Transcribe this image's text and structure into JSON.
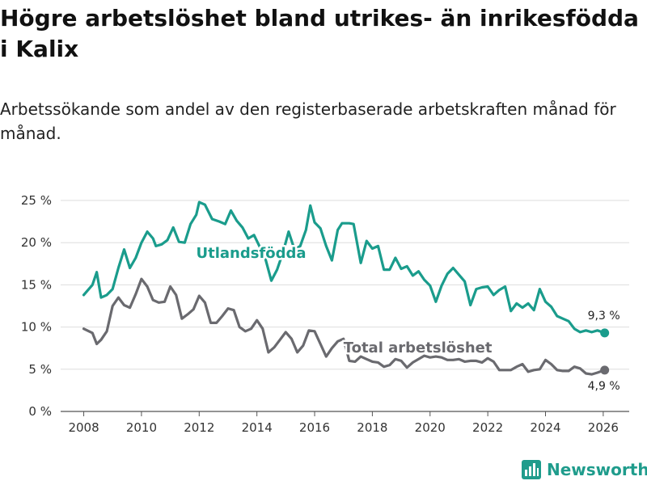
{
  "title": "Högre arbetslöshet bland utrikes- än inrikesfödda i Kalix",
  "subtitle": "Arbetssökande som andel av den registerbaserade arbetskraften månad för månad.",
  "brand": "Newsworthy",
  "colors": {
    "foreign": "#1a9c8c",
    "total": "#6a6a6f",
    "grid": "#dddddd",
    "brand": "#1f9c8c"
  },
  "chart_data": {
    "type": "line",
    "title": "Högre arbetslöshet bland utrikes- än inrikesfödda i Kalix",
    "xlabel": "",
    "ylabel": "",
    "xlim": [
      2007.2,
      2026.9
    ],
    "ylim": [
      0,
      25
    ],
    "yticks": [
      0,
      5,
      10,
      15,
      20,
      25
    ],
    "ytick_labels": [
      "0 %",
      "5 %",
      "10 %",
      "15 %",
      "20 %",
      "25 %"
    ],
    "xticks": [
      2008,
      2010,
      2012,
      2014,
      2016,
      2018,
      2020,
      2022,
      2024,
      2026
    ],
    "xtick_labels": [
      "2008",
      "2010",
      "2012",
      "2014",
      "2016",
      "2018",
      "2020",
      "2022",
      "2024",
      "2026"
    ],
    "grid": true,
    "series": [
      {
        "name": "Utlandsfödda",
        "label": "Utlandsfödda",
        "end_label": "9,3 %",
        "x": [
          2008.0,
          2008.3,
          2008.45,
          2008.6,
          2008.8,
          2009.0,
          2009.2,
          2009.4,
          2009.6,
          2009.8,
          2010.0,
          2010.2,
          2010.4,
          2010.5,
          2010.7,
          2010.9,
          2011.1,
          2011.3,
          2011.5,
          2011.7,
          2011.9,
          2012.0,
          2012.2,
          2012.45,
          2012.7,
          2012.9,
          2013.1,
          2013.3,
          2013.5,
          2013.7,
          2013.9,
          2014.1,
          2014.3,
          2014.5,
          2014.7,
          2014.9,
          2015.1,
          2015.3,
          2015.5,
          2015.7,
          2015.85,
          2016.0,
          2016.2,
          2016.4,
          2016.6,
          2016.8,
          2016.95,
          2017.2,
          2017.35,
          2017.6,
          2017.8,
          2018.0,
          2018.2,
          2018.4,
          2018.6,
          2018.8,
          2019.0,
          2019.2,
          2019.4,
          2019.6,
          2019.8,
          2020.0,
          2020.2,
          2020.4,
          2020.6,
          2020.8,
          2021.0,
          2021.2,
          2021.4,
          2021.6,
          2021.8,
          2022.0,
          2022.2,
          2022.4,
          2022.6,
          2022.8,
          2023.0,
          2023.2,
          2023.4,
          2023.6,
          2023.8,
          2024.0,
          2024.2,
          2024.4,
          2024.6,
          2024.8,
          2025.0,
          2025.2,
          2025.4,
          2025.6,
          2025.8,
          2026.05
        ],
        "values": [
          13.8,
          15.0,
          16.5,
          13.5,
          13.8,
          14.5,
          17.0,
          19.2,
          17.0,
          18.2,
          20.0,
          21.3,
          20.5,
          19.6,
          19.8,
          20.3,
          21.8,
          20.1,
          20.0,
          22.2,
          23.3,
          24.8,
          24.5,
          22.8,
          22.5,
          22.2,
          23.8,
          22.6,
          21.8,
          20.5,
          20.9,
          19.5,
          18.0,
          15.5,
          16.8,
          18.8,
          21.3,
          19.2,
          19.6,
          21.5,
          24.4,
          22.4,
          21.7,
          19.6,
          17.9,
          21.5,
          22.3,
          22.3,
          22.2,
          17.6,
          20.2,
          19.3,
          19.6,
          16.8,
          16.8,
          18.2,
          16.9,
          17.2,
          16.1,
          16.6,
          15.6,
          14.9,
          13.0,
          14.9,
          16.3,
          17.0,
          16.2,
          15.4,
          12.6,
          14.5,
          14.7,
          14.8,
          13.8,
          14.4,
          14.8,
          11.9,
          12.8,
          12.3,
          12.8,
          12.0,
          14.5,
          13.0,
          12.4,
          11.3,
          11.0,
          10.7,
          9.8,
          9.4,
          9.6,
          9.4,
          9.6,
          9.3
        ]
      },
      {
        "name": "Total arbetslöshet",
        "label": "Total arbetslöshet",
        "end_label": "4,9 %",
        "x": [
          2008.0,
          2008.3,
          2008.45,
          2008.6,
          2008.8,
          2009.0,
          2009.2,
          2009.4,
          2009.6,
          2009.8,
          2010.0,
          2010.2,
          2010.4,
          2010.6,
          2010.8,
          2011.0,
          2011.2,
          2011.4,
          2011.6,
          2011.8,
          2012.0,
          2012.2,
          2012.4,
          2012.6,
          2012.8,
          2013.0,
          2013.2,
          2013.4,
          2013.6,
          2013.8,
          2014.0,
          2014.2,
          2014.4,
          2014.6,
          2014.8,
          2015.0,
          2015.2,
          2015.4,
          2015.6,
          2015.8,
          2016.0,
          2016.2,
          2016.4,
          2016.6,
          2016.8,
          2017.0,
          2017.2,
          2017.4,
          2017.6,
          2017.8,
          2018.0,
          2018.2,
          2018.4,
          2018.6,
          2018.8,
          2019.0,
          2019.2,
          2019.4,
          2019.6,
          2019.8,
          2020.0,
          2020.2,
          2020.4,
          2020.6,
          2020.8,
          2021.0,
          2021.2,
          2021.4,
          2021.6,
          2021.8,
          2022.0,
          2022.2,
          2022.4,
          2022.6,
          2022.8,
          2023.0,
          2023.2,
          2023.4,
          2023.6,
          2023.8,
          2024.0,
          2024.2,
          2024.4,
          2024.6,
          2024.8,
          2025.0,
          2025.2,
          2025.4,
          2025.6,
          2025.8,
          2026.05
        ],
        "values": [
          9.8,
          9.3,
          8.0,
          8.5,
          9.5,
          12.5,
          13.5,
          12.6,
          12.3,
          13.9,
          15.7,
          14.8,
          13.2,
          12.9,
          13.0,
          14.8,
          13.8,
          11.0,
          11.5,
          12.1,
          13.7,
          12.9,
          10.5,
          10.5,
          11.3,
          12.2,
          12.0,
          10.0,
          9.5,
          9.8,
          10.8,
          9.8,
          7.0,
          7.6,
          8.5,
          9.4,
          8.6,
          7.0,
          7.8,
          9.6,
          9.5,
          8.0,
          6.5,
          7.5,
          8.3,
          8.6,
          6.0,
          5.9,
          6.5,
          6.2,
          5.9,
          5.8,
          5.3,
          5.5,
          6.2,
          6.0,
          5.2,
          5.8,
          6.2,
          6.6,
          6.4,
          6.5,
          6.4,
          6.1,
          6.1,
          6.2,
          5.9,
          6.0,
          6.0,
          5.8,
          6.3,
          5.9,
          4.9,
          4.9,
          4.9,
          5.3,
          5.6,
          4.7,
          4.9,
          5.0,
          6.1,
          5.6,
          4.9,
          4.8,
          4.8,
          5.3,
          5.1,
          4.5,
          4.4,
          4.6,
          4.9
        ]
      }
    ]
  }
}
